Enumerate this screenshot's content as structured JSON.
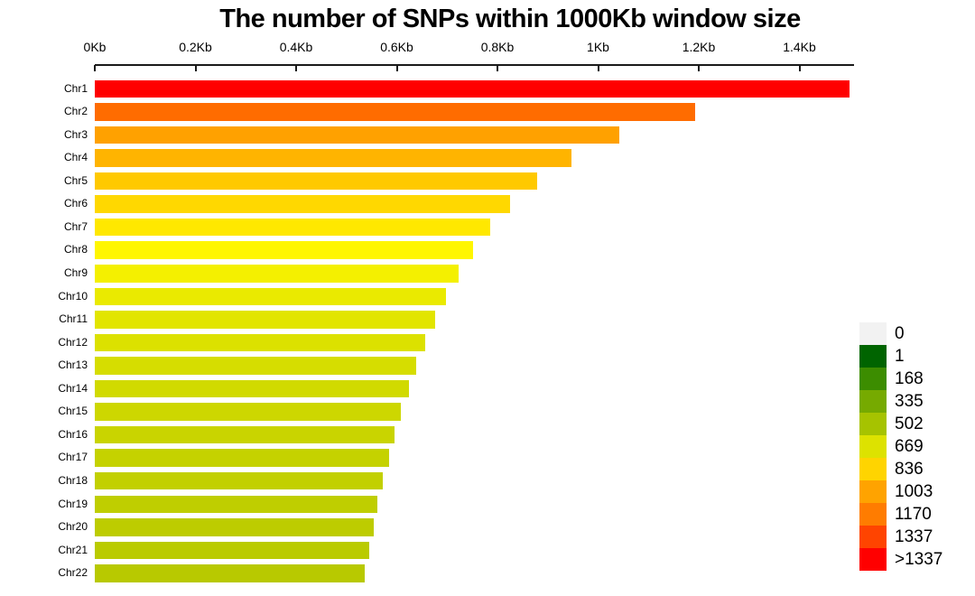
{
  "chart_data": {
    "type": "bar",
    "orientation": "horizontal",
    "title": "The number of SNPs within 1000Kb window size",
    "x_axis": {
      "position": "top",
      "unit": "Kb",
      "range": [
        0,
        1.507
      ],
      "tick_values": [
        0,
        0.2,
        0.4,
        0.6,
        0.8,
        1.0,
        1.2,
        1.4
      ],
      "tick_labels": [
        "0Kb",
        "0.2Kb",
        "0.4Kb",
        "0.6Kb",
        "0.8Kb",
        "1Kb",
        "1.2Kb",
        "1.4Kb"
      ]
    },
    "categories": [
      "Chr1",
      "Chr2",
      "Chr3",
      "Chr4",
      "Chr5",
      "Chr6",
      "Chr7",
      "Chr8",
      "Chr9",
      "Chr10",
      "Chr11",
      "Chr12",
      "Chr13",
      "Chr14",
      "Chr15",
      "Chr16",
      "Chr17",
      "Chr18",
      "Chr19",
      "Chr20",
      "Chr21",
      "Chr22"
    ],
    "values": [
      1.5,
      1.193,
      1.042,
      0.947,
      0.879,
      0.825,
      0.786,
      0.752,
      0.722,
      0.698,
      0.676,
      0.656,
      0.638,
      0.624,
      0.608,
      0.596,
      0.585,
      0.572,
      0.561,
      0.554,
      0.545,
      0.536
    ],
    "bar_colors": [
      "#ff0000",
      "#ff6c00",
      "#ffa100",
      "#ffb400",
      "#ffc900",
      "#ffd800",
      "#ffe800",
      "#fff600",
      "#f4f000",
      "#eaea00",
      "#e2e500",
      "#dce100",
      "#d6dd00",
      "#d1da00",
      "#cdd700",
      "#c9d400",
      "#c5d200",
      "#c2d000",
      "#bfce00",
      "#bdcc00",
      "#bacb00",
      "#b8c900"
    ],
    "grid": false,
    "legend": {
      "position": "right",
      "entries": [
        {
          "label": "0",
          "color": "#f2f2f2"
        },
        {
          "label": "1",
          "color": "#006400"
        },
        {
          "label": "168",
          "color": "#3c8d00"
        },
        {
          "label": "335",
          "color": "#76aa00"
        },
        {
          "label": "502",
          "color": "#a6c300"
        },
        {
          "label": "669",
          "color": "#dde200"
        },
        {
          "label": "836",
          "color": "#ffd400"
        },
        {
          "label": "1003",
          "color": "#ffa300"
        },
        {
          "label": "1170",
          "color": "#ff7c00"
        },
        {
          "label": "1337",
          "color": "#ff4400"
        },
        {
          "label": ">1337",
          "color": "#ff0000"
        }
      ]
    }
  }
}
